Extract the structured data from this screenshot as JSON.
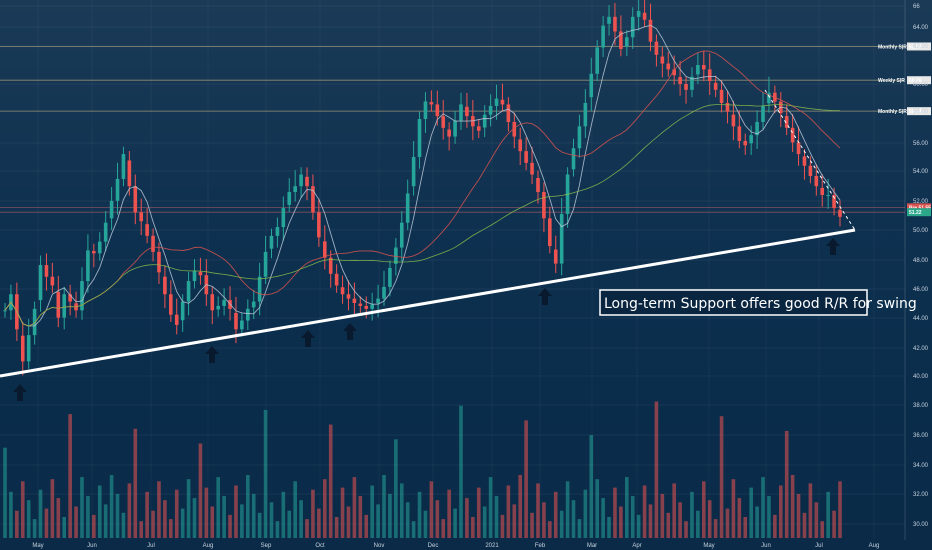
{
  "chart_data": {
    "type": "candlestick",
    "x_ticks": [
      "May",
      "Jun",
      "Jul",
      "Aug",
      "Sep",
      "Oct",
      "Nov",
      "Dec",
      "2021",
      "Feb",
      "Mar",
      "Apr",
      "May",
      "Jun",
      "Jul",
      "Aug"
    ],
    "y_ticks": [
      "66",
      "64.00",
      "62.00",
      "60.00",
      "58.00",
      "56.00",
      "54.00",
      "52.00",
      "50.00",
      "48.00",
      "46.00",
      "44.00",
      "42.00",
      "40.00",
      "38.00",
      "36.00",
      "34.00",
      "32.00",
      "30.00"
    ],
    "price_axis_ylim": [
      40,
      66
    ],
    "level_lines": [
      {
        "label": "Monthly S|R",
        "value": "62.57",
        "price": 62.57
      },
      {
        "label": "Weekly S|R",
        "value": "60.26",
        "price": 60.26
      },
      {
        "label": "Monthly S|R",
        "value": "58.14",
        "price": 58.14
      },
      {
        "label": "",
        "value": "51.55",
        "price": 51.55,
        "tag": "Pre"
      },
      {
        "label": "",
        "value": "51.22",
        "price": 51.22
      }
    ],
    "annotation": "Long-term Support offers good R/R for swing",
    "support_line": {
      "from_price": 40.2,
      "to_price": 50.0
    },
    "candles": [
      44.5,
      45.6,
      43.2,
      41.0,
      42.8,
      44.6,
      47.6,
      46.8,
      46.2,
      44.0,
      45.6,
      45.1,
      44.5,
      46.5,
      48.6,
      48.4,
      49.2,
      50.5,
      52.0,
      53.5,
      55.2,
      53.0,
      51.2,
      50.6,
      49.6,
      48.5,
      47.1,
      45.6,
      44.2,
      43.5,
      45.1,
      46.5,
      47.2,
      46.9,
      45.6,
      44.5,
      44.8,
      45.2,
      44.6,
      43.2,
      43.8,
      44.6,
      45.1,
      46.8,
      48.5,
      49.6,
      50.2,
      51.5,
      52.6,
      53.0,
      53.8,
      53.0,
      51.2,
      49.5,
      48.1,
      47.0,
      46.2,
      45.6,
      45.3,
      45.0,
      44.8,
      44.6,
      44.9,
      45.3,
      46.1,
      47.4,
      48.8,
      50.5,
      52.5,
      55.0,
      57.6,
      58.8,
      58.6,
      57.8,
      57.0,
      56.4,
      57.5,
      58.6,
      57.8,
      57.1,
      56.8,
      57.9,
      58.5,
      59.0,
      58.6,
      57.4,
      56.4,
      55.4,
      54.6,
      53.8,
      52.6,
      50.8,
      48.9,
      47.7,
      51.1,
      53.8,
      55.6,
      57.1,
      58.7,
      60.7,
      62.5,
      64.0,
      64.6,
      63.6,
      62.4,
      63.2,
      64.6,
      65.0,
      64.4,
      62.9,
      62.0,
      61.4,
      61.0,
      60.6,
      60.0,
      59.6,
      60.5,
      61.3,
      61.0,
      60.2,
      59.6,
      58.7,
      58.1,
      57.1,
      56.1,
      55.8,
      56.5,
      57.4,
      58.5,
      59.4,
      58.8,
      58.0,
      57.0,
      56.0,
      55.2,
      54.4,
      53.7,
      53.0,
      52.4,
      52.4,
      51.5,
      50.9
    ],
    "volume_axis": "30.00-38.00"
  }
}
